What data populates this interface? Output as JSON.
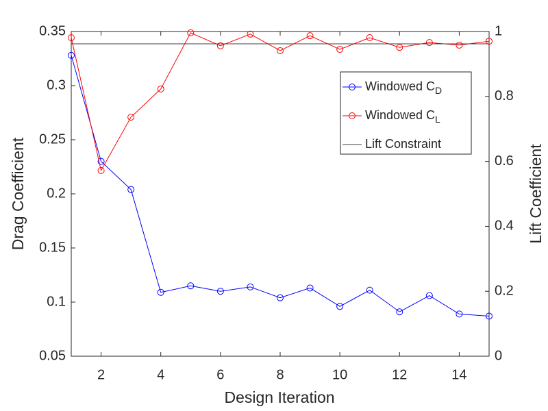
{
  "chart_data": {
    "type": "line",
    "x": [
      1,
      2,
      3,
      4,
      5,
      6,
      7,
      8,
      9,
      10,
      11,
      12,
      13,
      14,
      15
    ],
    "xlabel": "Design Iteration",
    "ylabel": "Drag Coefficient",
    "y2label": "Lift Coefficient",
    "xlim": [
      1,
      15
    ],
    "xticks": [
      2,
      4,
      6,
      8,
      10,
      12,
      14
    ],
    "ylim": [
      0.05,
      0.35
    ],
    "yticks": [
      0.05,
      0.1,
      0.15,
      0.2,
      0.25,
      0.3,
      0.35
    ],
    "y2lim": [
      0,
      1
    ],
    "y2ticks": [
      0,
      0.2,
      0.4,
      0.6,
      0.8,
      1
    ],
    "legend": "upper right",
    "series": [
      {
        "name": "Windowed C",
        "name_subscript": "D",
        "color": "#0000ff",
        "marker": "circle",
        "axis": "y",
        "values": [
          0.328,
          0.23,
          0.204,
          0.109,
          0.115,
          0.11,
          0.114,
          0.104,
          0.113,
          0.096,
          0.111,
          0.091,
          0.106,
          0.089,
          0.087
        ]
      },
      {
        "name": "Windowed C",
        "name_subscript": "L",
        "color": "#ff0000",
        "marker": "circle",
        "axis": "y2",
        "values": [
          0.981,
          0.572,
          0.736,
          0.823,
          0.996,
          0.956,
          0.992,
          0.941,
          0.987,
          0.945,
          0.981,
          0.951,
          0.966,
          0.958,
          0.97
        ]
      },
      {
        "name": "Lift Constraint",
        "color": "#404040",
        "marker": "none",
        "axis": "y2",
        "values": [
          0.962,
          0.962,
          0.962,
          0.962,
          0.962,
          0.962,
          0.962,
          0.962,
          0.962,
          0.962,
          0.962,
          0.962,
          0.962,
          0.962,
          0.962
        ]
      }
    ]
  }
}
